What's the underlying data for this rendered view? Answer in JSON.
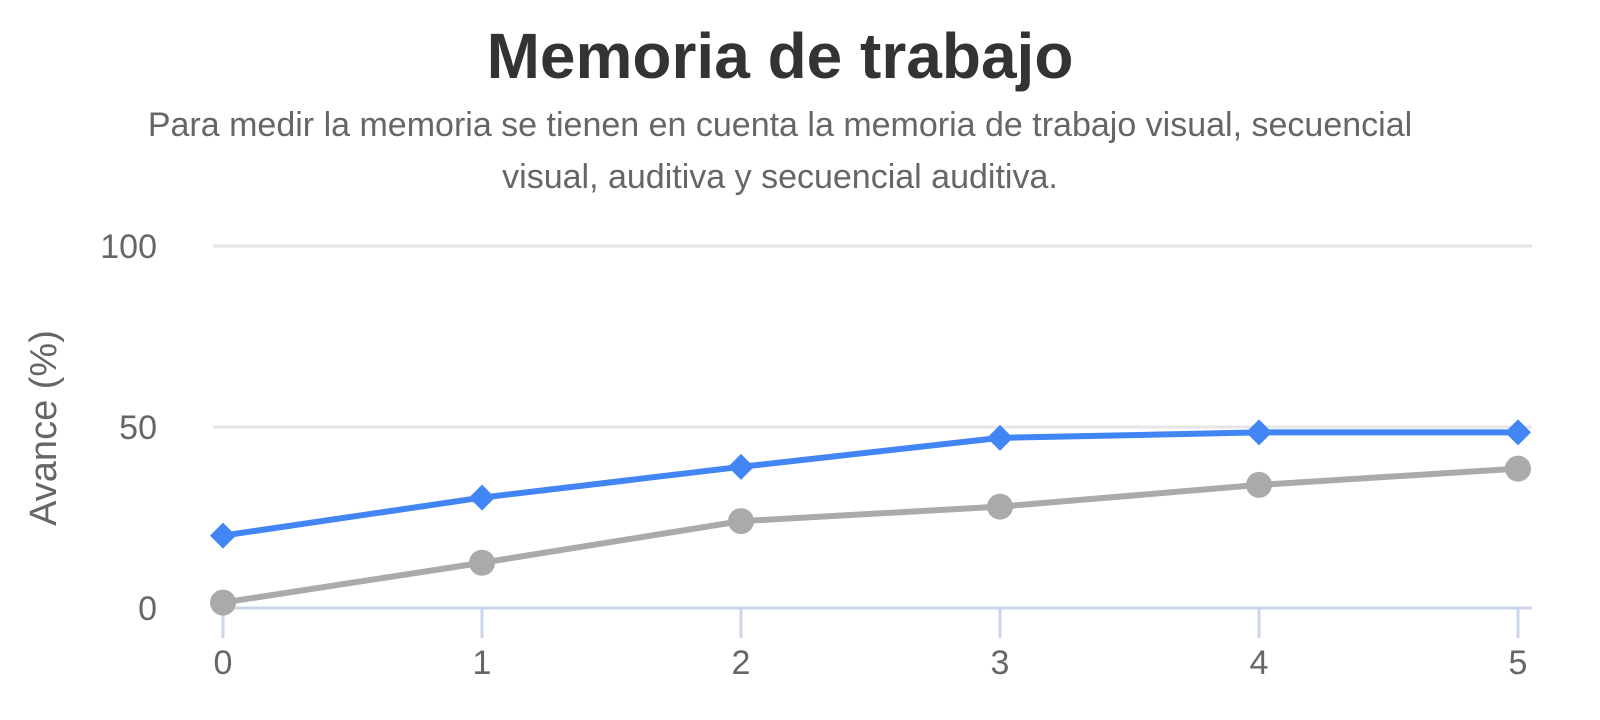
{
  "chart_data": {
    "type": "line",
    "title": "Memoria de trabajo",
    "subtitle_lines": [
      "Para medir la memoria se tienen en cuenta la memoria de trabajo visual, secuencial",
      "visual, auditiva y secuencial auditiva."
    ],
    "ylabel": "Avance (%)",
    "xlabel": "",
    "x": [
      0,
      1,
      2,
      3,
      4,
      5
    ],
    "xticks": [
      "0",
      "1",
      "2",
      "3",
      "4",
      "5"
    ],
    "yticks": [
      "0",
      "50",
      "100"
    ],
    "ylim": [
      0,
      100
    ],
    "grid": true,
    "legend": "none",
    "series": [
      {
        "color": "#4285f4",
        "marker": "diamond",
        "values": [
          20,
          30.5,
          39,
          47,
          48.5,
          48.5
        ]
      },
      {
        "color": "#aaaaaa",
        "marker": "circle",
        "values": [
          1.5,
          12.5,
          24,
          28,
          34,
          38.5
        ]
      }
    ]
  },
  "colors": {
    "gridline": "#e6e6e6",
    "axis_line": "#ccd6eb",
    "text": "#666666",
    "title": "#333333"
  }
}
